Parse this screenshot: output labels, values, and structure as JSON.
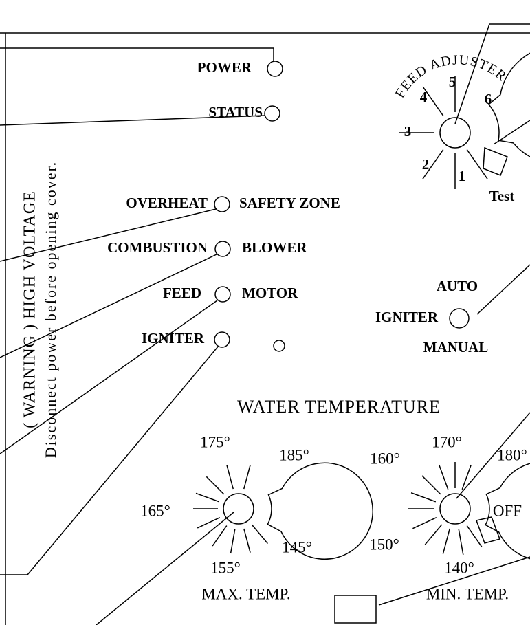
{
  "indicators": [
    {
      "label": "POWER"
    },
    {
      "label": "STATUS"
    }
  ],
  "lights": [
    {
      "left": "OVERHEAT",
      "right": "SAFETY ZONE"
    },
    {
      "left": "COMBUSTION",
      "right": "BLOWER"
    },
    {
      "left": "FEED",
      "right": "MOTOR"
    },
    {
      "left": "IGNITER"
    }
  ],
  "feed_adjuster": {
    "title": "FEED ADJUSTER",
    "settings": [
      "1",
      "2",
      "3",
      "4",
      "5",
      "6"
    ],
    "test": "Test"
  },
  "igniter_switch": {
    "top": "AUTO",
    "label": "IGNITER",
    "bottom": "MANUAL"
  },
  "water_temperature": {
    "title": "WATER TEMPERATURE",
    "max_dial": {
      "labels": [
        "175°",
        "185°",
        "165°",
        "155°",
        "145°"
      ],
      "name": "MAX. TEMP."
    },
    "min_dial": {
      "labels": [
        "170°",
        "180°",
        "160°",
        "150°",
        "140°",
        "OFF"
      ],
      "name": "MIN. TEMP."
    }
  },
  "warning": {
    "line1": "( WARNING ) HIGH VOLTAGE",
    "line2": "Disconnect power before opening cover."
  }
}
